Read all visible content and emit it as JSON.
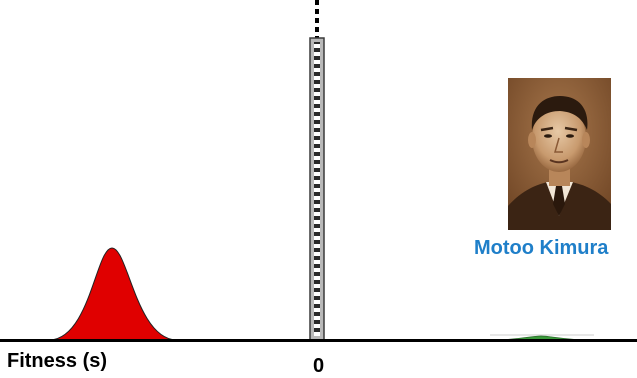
{
  "diagram": {
    "x_axis_label": "Fitness (s)",
    "zero_tick_label": "0",
    "colors": {
      "axis": "#000000",
      "deleterious_peak": "#e00000",
      "beneficial_peak": "#3a9a3a",
      "neutral_bar_fill": "#b9b9b9",
      "neutral_bar_stroke": "#3a3a3a",
      "name_text": "#1f7fc9",
      "portrait_tone": "#8a5a32"
    }
  },
  "portrait": {
    "name": "Motoo Kimura",
    "image_icon": "sepia-portrait-photo"
  }
}
